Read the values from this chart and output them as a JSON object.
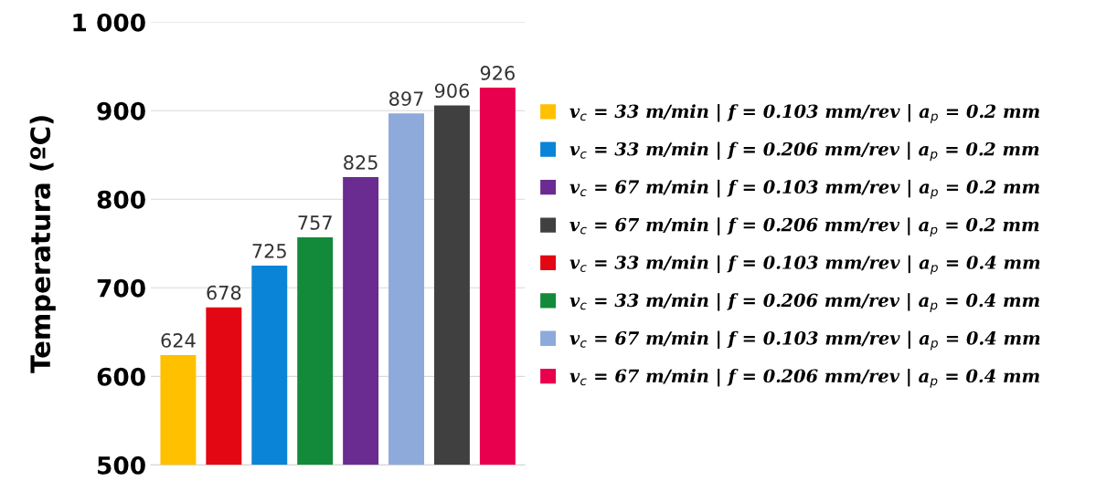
{
  "chart_data": {
    "type": "bar",
    "ylabel": "Temperatura (ºC)",
    "categories": [
      null,
      null,
      null,
      null,
      null,
      null,
      null,
      null
    ],
    "series": [
      {
        "name": "v$_{c}$ = 33 m/min | f = 0.103 mm/rev | a$_{p}$ = 0.2 mm",
        "color": "#ffc000",
        "values": [
          624,
          null,
          null,
          null,
          null,
          null,
          null,
          null
        ]
      },
      {
        "name": "v$_{c}$ = 33 m/min | f = 0.206 mm/rev | a$_{p}$ = 0.2 mm",
        "color": "#0a84d6",
        "values": [
          null,
          null,
          725,
          null,
          null,
          null,
          null,
          null
        ]
      },
      {
        "name": "v$_{c}$ = 67 m/min | f = 0.103 mm/rev | a$_{p}$ = 0.2 mm",
        "color": "#6a2c91",
        "values": [
          null,
          null,
          null,
          null,
          825,
          null,
          null,
          null
        ]
      },
      {
        "name": "v$_{c}$ = 67 m/min | f = 0.206 mm/rev | a$_{p}$ = 0.2 mm",
        "color": "#404040",
        "values": [
          null,
          null,
          null,
          null,
          null,
          null,
          906,
          null
        ]
      },
      {
        "name": "v$_{c}$ = 33 m/min | f = 0.103 mm/rev | a$_{p}$ = 0.4 mm",
        "color": "#e30613",
        "values": [
          null,
          678,
          null,
          null,
          null,
          null,
          null,
          null
        ]
      },
      {
        "name": "v$_{c}$ = 33 m/min | f = 0.206 mm/rev | a$_{p}$ = 0.4 mm",
        "color": "#128a3a",
        "values": [
          null,
          null,
          null,
          757,
          null,
          null,
          null,
          null
        ]
      },
      {
        "name": "v$_{c}$ = 67 m/min | f = 0.103 mm/rev | a$_{p}$ = 0.4 mm",
        "color": "#8eaadb",
        "values": [
          null,
          null,
          null,
          null,
          null,
          897,
          null,
          null
        ]
      },
      {
        "name": "v$_{c}$ = 67 m/min | f = 0.206 mm/rev | a$_{p}$ = 0.4 mm",
        "color": "#e8004f",
        "values": [
          null,
          null,
          null,
          null,
          null,
          null,
          null,
          926
        ]
      }
    ],
    "ylim": [
      500,
      1000
    ],
    "yticks": [
      500,
      600,
      700,
      800,
      900,
      {
        "value": 1000,
        "label": "1 000"
      }
    ],
    "grid": "y",
    "legend": "right",
    "data_labels": true
  }
}
